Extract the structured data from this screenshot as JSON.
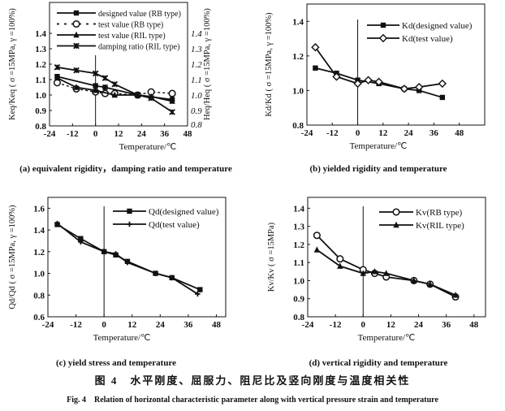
{
  "figure": {
    "title_cn": "图 4　水平刚度、屈服力、阻尼比及竖向刚度与温度相关性",
    "title_en": "Fig. 4　Relation of horizontal characteristic parameter along with vertical pressure strain and temperature"
  },
  "chart_data": [
    {
      "type": "line",
      "caption": "(a) equivalent rigidity，damping ratio and temperature",
      "xlabel": "Temperature/℃",
      "ylabel": "Keq/Keq ( σ =15MPa, γ =100%)",
      "ylabel_right": "Heq/Heq ( σ =15MPa, γ =100%)",
      "xlim": [
        -24,
        48
      ],
      "ylim": [
        0.8,
        1.6
      ],
      "xticks": [
        -24,
        -12,
        0,
        12,
        24,
        36,
        48
      ],
      "yticks": [
        "0.8",
        "0.9",
        "1.0",
        "1.1",
        "1.2",
        "1.3",
        "1.4"
      ],
      "yticks_right": [
        "0.8",
        "0.9",
        "1.0",
        "1.1",
        "1.2",
        "1.3",
        "1.4"
      ],
      "legend": "top",
      "series": [
        {
          "name": "designed value (RB type)",
          "marker": "square",
          "dash": false,
          "x": [
            -20,
            0,
            5,
            22,
            40
          ],
          "y": [
            1.12,
            1.06,
            1.05,
            1.0,
            0.97
          ]
        },
        {
          "name": "test value (RB type)",
          "marker": "circle",
          "dash": true,
          "x": [
            -20,
            -10,
            0,
            5,
            10,
            22,
            29,
            40
          ],
          "y": [
            1.08,
            1.04,
            1.02,
            1.01,
            1.01,
            1.0,
            1.02,
            1.01
          ]
        },
        {
          "name": "test value (RIL type)",
          "marker": "triangle",
          "dash": false,
          "x": [
            -20,
            -10,
            0,
            10,
            22,
            29,
            40
          ],
          "y": [
            1.11,
            1.05,
            1.03,
            1.0,
            1.0,
            0.99,
            0.96
          ]
        },
        {
          "name": "damping ratio (RIL type)",
          "marker": "star",
          "dash": false,
          "x": [
            -20,
            -10,
            0,
            5,
            10,
            22,
            29,
            40
          ],
          "y": [
            1.18,
            1.16,
            1.14,
            1.11,
            1.07,
            1.0,
            0.98,
            0.89
          ]
        }
      ]
    },
    {
      "type": "line",
      "caption": "(b) yielded rigidity and temperature",
      "xlabel": "Temperature/℃",
      "ylabel": "Kd/Kd ( σ =15MPa, γ =100%)",
      "xlim": [
        -24,
        60
      ],
      "ylim": [
        0.8,
        1.5
      ],
      "xticks": [
        -24,
        -12,
        0,
        12,
        24,
        36,
        48
      ],
      "yticks": [
        "0.8",
        "1.0",
        "1.2",
        "1.4"
      ],
      "legend": "top-right",
      "series": [
        {
          "name": "Kd(designed value)",
          "marker": "square",
          "dash": false,
          "x": [
            -20,
            -10,
            0,
            10,
            22,
            29,
            40
          ],
          "y": [
            1.13,
            1.1,
            1.06,
            1.04,
            1.01,
            1.0,
            0.96
          ]
        },
        {
          "name": "Kd(test value)",
          "marker": "diamond",
          "dash": false,
          "x": [
            -20,
            -10,
            0,
            5,
            10,
            22,
            29,
            40
          ],
          "y": [
            1.25,
            1.08,
            1.04,
            1.06,
            1.05,
            1.01,
            1.02,
            1.04
          ]
        }
      ]
    },
    {
      "type": "line",
      "caption": "(c) yield stress and temperature",
      "xlabel": "Temperature/℃",
      "ylabel": "Qd/Qd ( σ =15MPa, γ =100%)",
      "xlim": [
        -24,
        52
      ],
      "ylim": [
        0.6,
        1.7
      ],
      "xticks": [
        -24,
        -12,
        0,
        12,
        24,
        36,
        48
      ],
      "yticks": [
        "0.6",
        "0.8",
        "1.0",
        "1.2",
        "1.4",
        "1.6"
      ],
      "legend": "top-right",
      "series": [
        {
          "name": "Qd(designed value)",
          "marker": "square",
          "dash": false,
          "x": [
            -20,
            -10,
            0,
            5,
            10,
            22,
            29,
            41
          ],
          "y": [
            1.45,
            1.32,
            1.2,
            1.17,
            1.11,
            1.0,
            0.96,
            0.85
          ]
        },
        {
          "name": "Qd(test value)",
          "marker": "plus",
          "dash": false,
          "x": [
            -20,
            -10,
            0,
            5,
            10,
            22,
            29,
            40
          ],
          "y": [
            1.46,
            1.29,
            1.2,
            1.18,
            1.1,
            1.0,
            0.96,
            0.81
          ]
        }
      ]
    },
    {
      "type": "line",
      "caption": "(d) vertical rigidity and temperature",
      "xlabel": "Temperature/℃",
      "ylabel": "Kv/Kv ( σ =15MPa)",
      "xlim": [
        -24,
        53
      ],
      "ylim": [
        0.8,
        1.46
      ],
      "xticks": [
        -24,
        -12,
        0,
        12,
        24,
        36,
        48
      ],
      "yticks": [
        "0.8",
        "0.9",
        "1.0",
        "1.1",
        "1.2",
        "1.3",
        "1.4"
      ],
      "legend": "top-right",
      "series": [
        {
          "name": "Kv(RB type)",
          "marker": "circle",
          "dash": false,
          "x": [
            -20,
            -10,
            0,
            5,
            10,
            22,
            29,
            40
          ],
          "y": [
            1.25,
            1.12,
            1.06,
            1.04,
            1.02,
            1.0,
            0.98,
            0.91
          ]
        },
        {
          "name": "Kv(RIL type)",
          "marker": "triangle",
          "dash": false,
          "x": [
            -20,
            -10,
            0,
            5,
            10,
            22,
            29,
            40
          ],
          "y": [
            1.17,
            1.08,
            1.04,
            1.05,
            1.04,
            1.0,
            0.98,
            0.92
          ]
        }
      ]
    }
  ]
}
